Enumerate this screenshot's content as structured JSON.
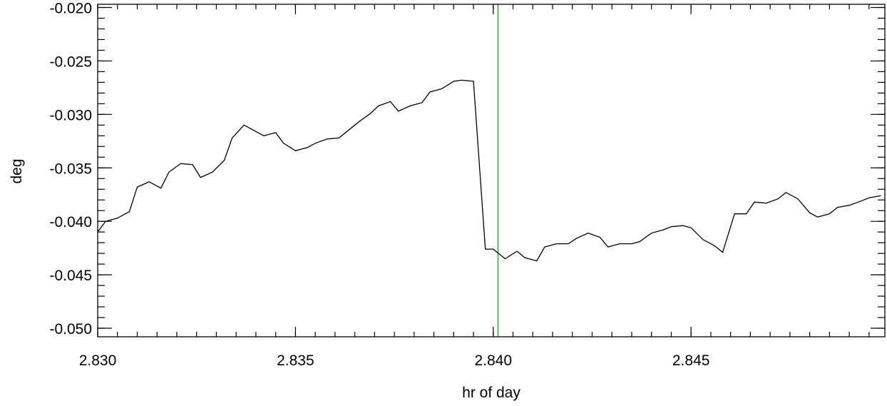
{
  "chart_data": {
    "type": "line",
    "title": "",
    "xlabel": "hr of day",
    "ylabel": "deg",
    "xlim": [
      2.83,
      2.8499
    ],
    "ylim": [
      -0.0508,
      -0.0197
    ],
    "x_ticks": [
      {
        "value": 2.83,
        "label": "2.830"
      },
      {
        "value": 2.835,
        "label": "2.835"
      },
      {
        "value": 2.84,
        "label": "2.840"
      },
      {
        "value": 2.845,
        "label": "2.845"
      }
    ],
    "y_ticks": [
      {
        "value": -0.02,
        "label": "-0.020"
      },
      {
        "value": -0.025,
        "label": "-0.025"
      },
      {
        "value": -0.03,
        "label": "-0.030"
      },
      {
        "value": -0.035,
        "label": "-0.035"
      },
      {
        "value": -0.04,
        "label": "-0.040"
      },
      {
        "value": -0.045,
        "label": "-0.045"
      },
      {
        "value": -0.05,
        "label": "-0.050"
      }
    ],
    "grid": false,
    "series": [
      {
        "color": "#000000",
        "x": [
          2.83,
          2.8302,
          2.8305,
          2.8308,
          2.831,
          2.8313,
          2.8316,
          2.8318,
          2.8321,
          2.8324,
          2.8326,
          2.8329,
          2.8332,
          2.8334,
          2.8337,
          2.8339,
          2.8342,
          2.8345,
          2.8347,
          2.835,
          2.8353,
          2.8355,
          2.8358,
          2.8361,
          2.8363,
          2.8366,
          2.8369,
          2.8371,
          2.8374,
          2.8376,
          2.8379,
          2.8382,
          2.8384,
          2.8387,
          2.839,
          2.8392,
          2.8395,
          2.8398,
          2.84,
          2.8403,
          2.8406,
          2.8408,
          2.8411,
          2.8413,
          2.8416,
          2.8419,
          2.8421,
          2.8424,
          2.8427,
          2.8429,
          2.8432,
          2.8435,
          2.8437,
          2.844,
          2.8443,
          2.8445,
          2.8448,
          2.845,
          2.8453,
          2.8456,
          2.8458,
          2.8461,
          2.8464,
          2.8466,
          2.8469,
          2.8472,
          2.8474,
          2.8477,
          2.848,
          2.8482,
          2.8485,
          2.8487,
          2.849,
          2.8493,
          2.8495,
          2.8498
        ],
        "y": [
          -0.041,
          -0.04,
          -0.0397,
          -0.0391,
          -0.0368,
          -0.0363,
          -0.0369,
          -0.0354,
          -0.0346,
          -0.0347,
          -0.0359,
          -0.0354,
          -0.0343,
          -0.0322,
          -0.031,
          -0.0314,
          -0.032,
          -0.0317,
          -0.0327,
          -0.0334,
          -0.0331,
          -0.0327,
          -0.0323,
          -0.0322,
          -0.0316,
          -0.0307,
          -0.0299,
          -0.0292,
          -0.0288,
          -0.0297,
          -0.0292,
          -0.0289,
          -0.0279,
          -0.0276,
          -0.0269,
          -0.0268,
          -0.0269,
          -0.0426,
          -0.0426,
          -0.0435,
          -0.0428,
          -0.0434,
          -0.0437,
          -0.0424,
          -0.0421,
          -0.0421,
          -0.0416,
          -0.0411,
          -0.0415,
          -0.0424,
          -0.0421,
          -0.0421,
          -0.0419,
          -0.0411,
          -0.0408,
          -0.0405,
          -0.0404,
          -0.0406,
          -0.0417,
          -0.0423,
          -0.0429,
          -0.0393,
          -0.0393,
          -0.0382,
          -0.0383,
          -0.0379,
          -0.0373,
          -0.0379,
          -0.0392,
          -0.0396,
          -0.0393,
          -0.0387,
          -0.0385,
          -0.0381,
          -0.0378,
          -0.0376
        ]
      }
    ],
    "vertical_lines": [
      {
        "x": 2.84012,
        "color": "#00b000"
      }
    ]
  }
}
